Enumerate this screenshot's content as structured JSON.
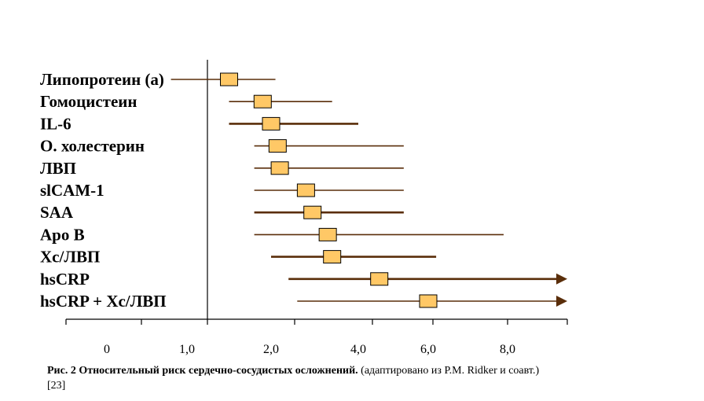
{
  "chart_data": {
    "type": "forest",
    "categories": [
      "Липопротеин (а)",
      "Гомоцистеин",
      "IL-6",
      "О. холестерин",
      "ЛВП",
      "slCAM-1",
      "SAA",
      "Apo B",
      "Хс/ЛВП",
      "hsCRP",
      "hsCRP + Хс/ЛВП"
    ],
    "estimates": [
      1.5,
      1.9,
      2.0,
      2.15,
      2.2,
      2.8,
      2.95,
      3.3,
      3.4,
      4.6,
      6.0
    ],
    "ci_low": [
      0.8,
      1.5,
      1.5,
      1.8,
      1.8,
      1.8,
      1.8,
      1.8,
      2.0,
      2.4,
      2.6
    ],
    "ci_high": [
      2.1,
      3.4,
      4.0,
      5.3,
      5.3,
      5.3,
      5.3,
      7.9,
      6.2,
      9.9,
      9.9
    ],
    "open_ended_high": [
      false,
      false,
      false,
      false,
      false,
      false,
      false,
      false,
      false,
      true,
      true
    ],
    "x_ticks": [
      "0",
      "1,0",
      "2,0",
      "4,0",
      "6,0",
      "8,0"
    ],
    "reference_line": 1.0,
    "colors": {
      "line": "#5a2e0a",
      "box_fill": "#ffc866",
      "box_stroke": "#000000",
      "axis": "#000000"
    }
  },
  "caption": {
    "bold": "Рис. 2 Относительный риск сердечно-сосудистых осложнений.",
    "normal": " (адаптировано из P.M. Ridker и соавт.) [23]"
  }
}
